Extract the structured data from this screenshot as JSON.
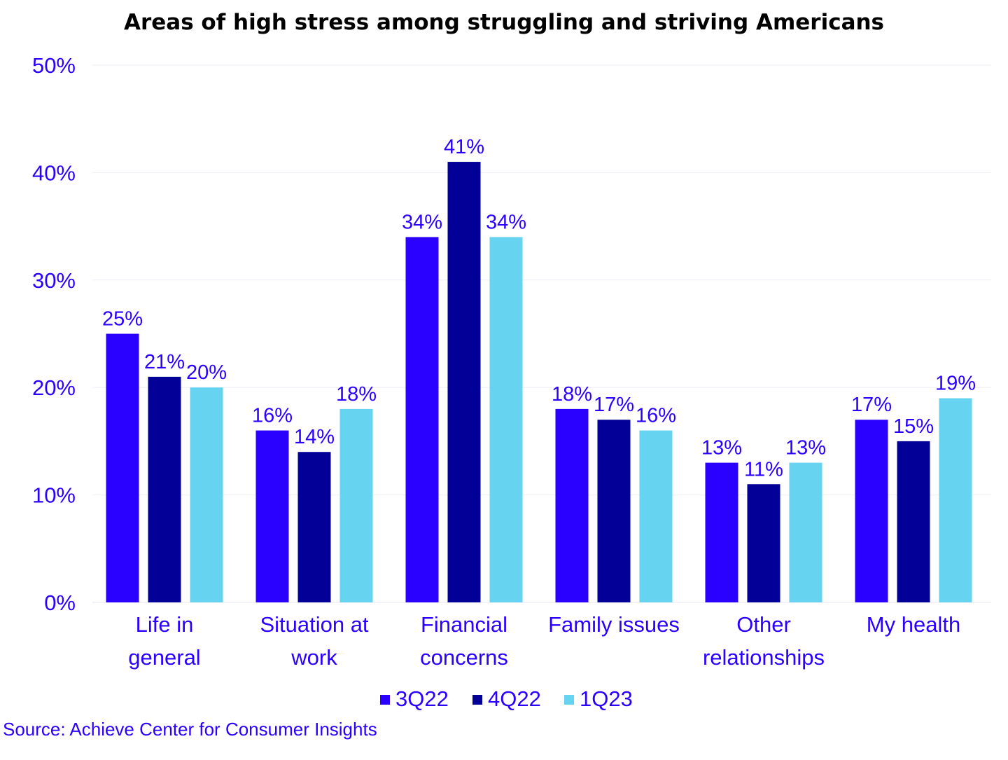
{
  "chart_data": {
    "type": "bar",
    "title": "Areas of high stress among struggling and striving Americans",
    "xlabel": "",
    "ylabel": "",
    "ylim": [
      0,
      50
    ],
    "yticks": [
      0,
      10,
      20,
      30,
      40,
      50
    ],
    "ytick_labels": [
      "0%",
      "10%",
      "20%",
      "30%",
      "40%",
      "50%"
    ],
    "grid": true,
    "legend_position": "bottom",
    "categories": [
      [
        "Life in",
        "general"
      ],
      [
        "Situation at",
        "work"
      ],
      [
        "Financial",
        "concerns"
      ],
      [
        "Family issues"
      ],
      [
        "Other",
        "relationships"
      ],
      [
        "My health"
      ]
    ],
    "series": [
      {
        "name": "3Q22",
        "color": "#2a00ff",
        "values": [
          25,
          16,
          34,
          18,
          13,
          17
        ]
      },
      {
        "name": "4Q22",
        "color": "#020096",
        "values": [
          21,
          14,
          41,
          17,
          11,
          15
        ]
      },
      {
        "name": "1Q23",
        "color": "#66d4f0",
        "values": [
          20,
          18,
          34,
          16,
          13,
          19
        ]
      }
    ],
    "value_format": "{v}%",
    "source": "Source: Achieve Center for Consumer Insights"
  }
}
